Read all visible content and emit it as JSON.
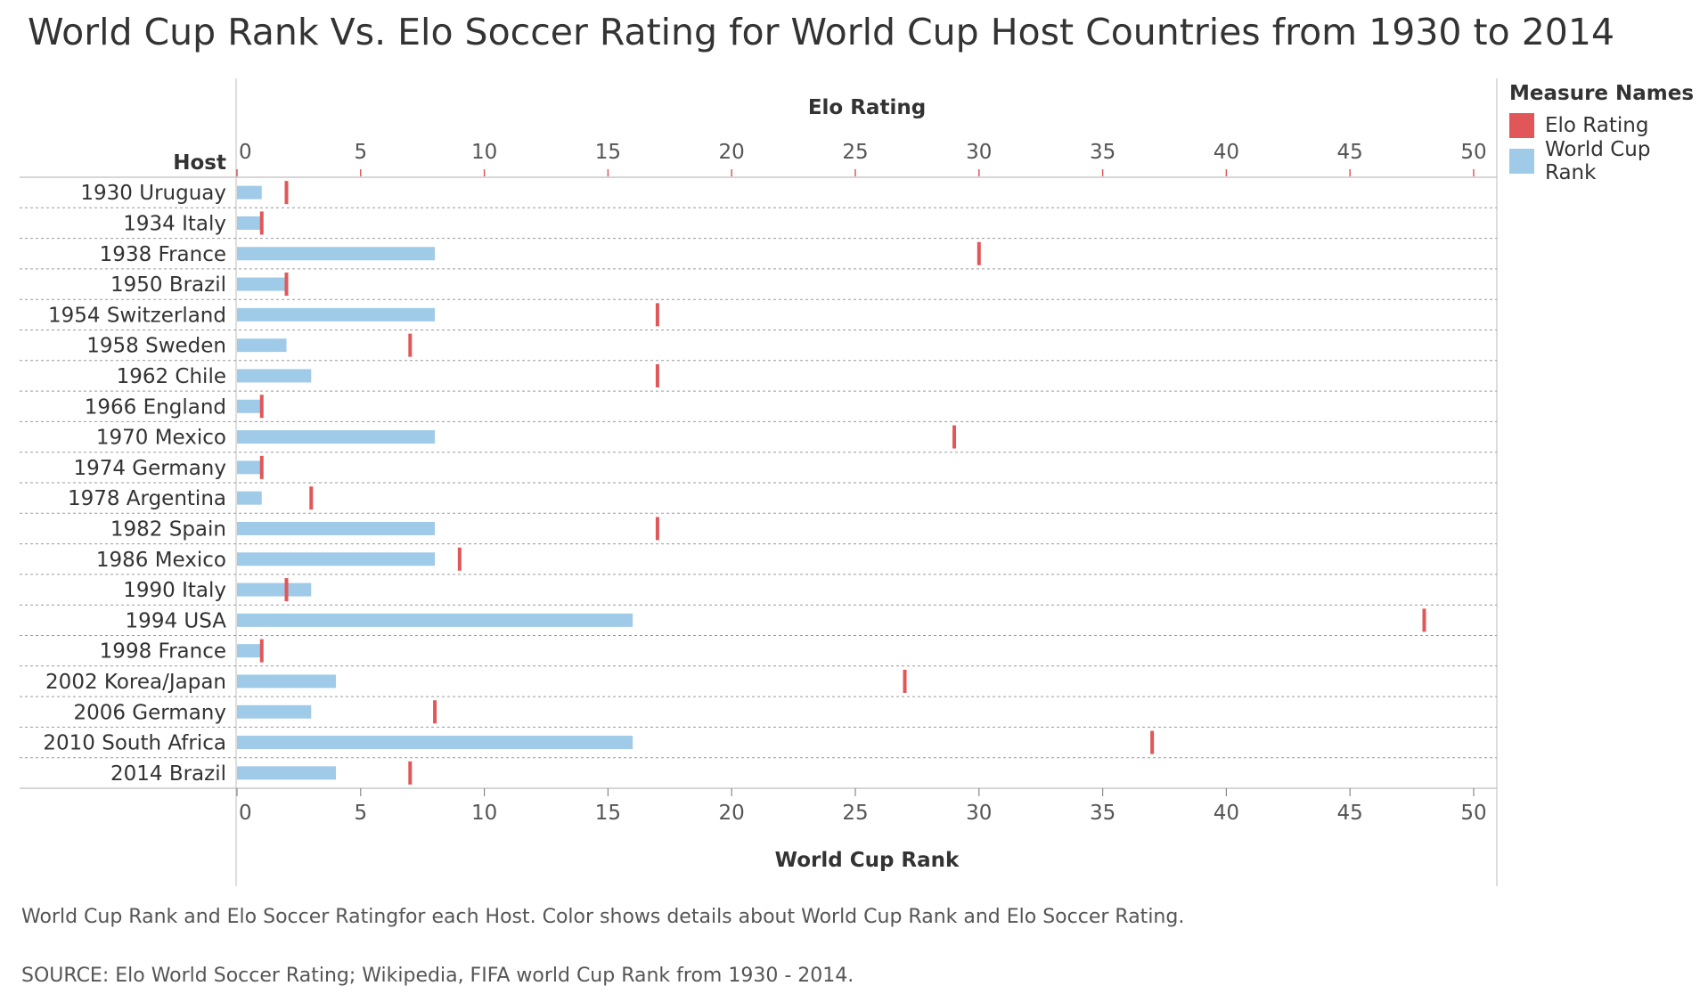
{
  "page": {
    "title": "World Cup Rank Vs. Elo Soccer Rating for World Cup Host Countries from 1930 to 2014",
    "caption": "World Cup Rank and Elo Soccer Ratingfor each Host.  Color shows details about World Cup Rank and Elo Soccer Rating.",
    "source": "SOURCE: Elo World Soccer Rating; Wikipedia, FIFA world Cup Rank from 1930 - 2014."
  },
  "legend": {
    "title": "Measure Names",
    "items": [
      {
        "label": "Elo Rating",
        "color": "#E15759"
      },
      {
        "label": "World Cup Rank",
        "color": "#A0CBE8"
      }
    ]
  },
  "chart_data": {
    "type": "bar",
    "row_header": "Host",
    "top_axis_label": "Elo Rating",
    "bottom_axis_label": "World Cup Rank",
    "xlim": [
      0,
      50
    ],
    "ticks": [
      0,
      5,
      10,
      15,
      20,
      25,
      30,
      35,
      40,
      45,
      50
    ],
    "grid": false,
    "legend_position": "right",
    "categories": [
      "1930 Uruguay",
      "1934 Italy",
      "1938 France",
      "1950 Brazil",
      "1954 Switzerland",
      "1958 Sweden",
      "1962 Chile",
      "1966 England",
      "1970 Mexico",
      "1974 Germany",
      "1978 Argentina",
      "1982 Spain",
      "1986 Mexico",
      "1990 Italy",
      "1994 USA",
      "1998 France",
      "2002 Korea/Japan",
      "2006 Germany",
      "2010 South Africa",
      "2014 Brazil"
    ],
    "series": [
      {
        "name": "World Cup Rank",
        "mark": "bar",
        "color": "#A0CBE8",
        "values": [
          1,
          1,
          8,
          2,
          8,
          2,
          3,
          1,
          8,
          1,
          1,
          8,
          8,
          3,
          16,
          1,
          4,
          3,
          16,
          4
        ]
      },
      {
        "name": "Elo Rating",
        "mark": "tick",
        "color": "#E15759",
        "values": [
          2,
          1,
          30,
          2,
          17,
          7,
          17,
          1,
          29,
          1,
          3,
          17,
          9,
          2,
          48,
          1,
          27,
          8,
          37,
          7
        ]
      }
    ]
  }
}
